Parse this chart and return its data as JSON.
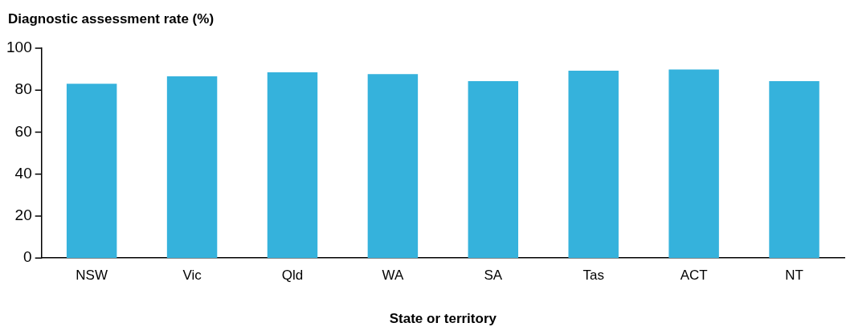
{
  "chart_data": {
    "type": "bar",
    "ylabel": "Diagnostic assessment rate (%)",
    "xlabel": "State or territory",
    "categories": [
      "NSW",
      "Vic",
      "Qld",
      "WA",
      "SA",
      "Tas",
      "ACT",
      "NT"
    ],
    "values": [
      83.1,
      86.6,
      88.5,
      87.7,
      84.3,
      89.3,
      89.9,
      84.3
    ],
    "color": "#35b2dc",
    "ylim": [
      0,
      100
    ],
    "yticks": [
      0,
      20,
      40,
      60,
      80,
      100
    ],
    "grid": false,
    "legend": false
  }
}
